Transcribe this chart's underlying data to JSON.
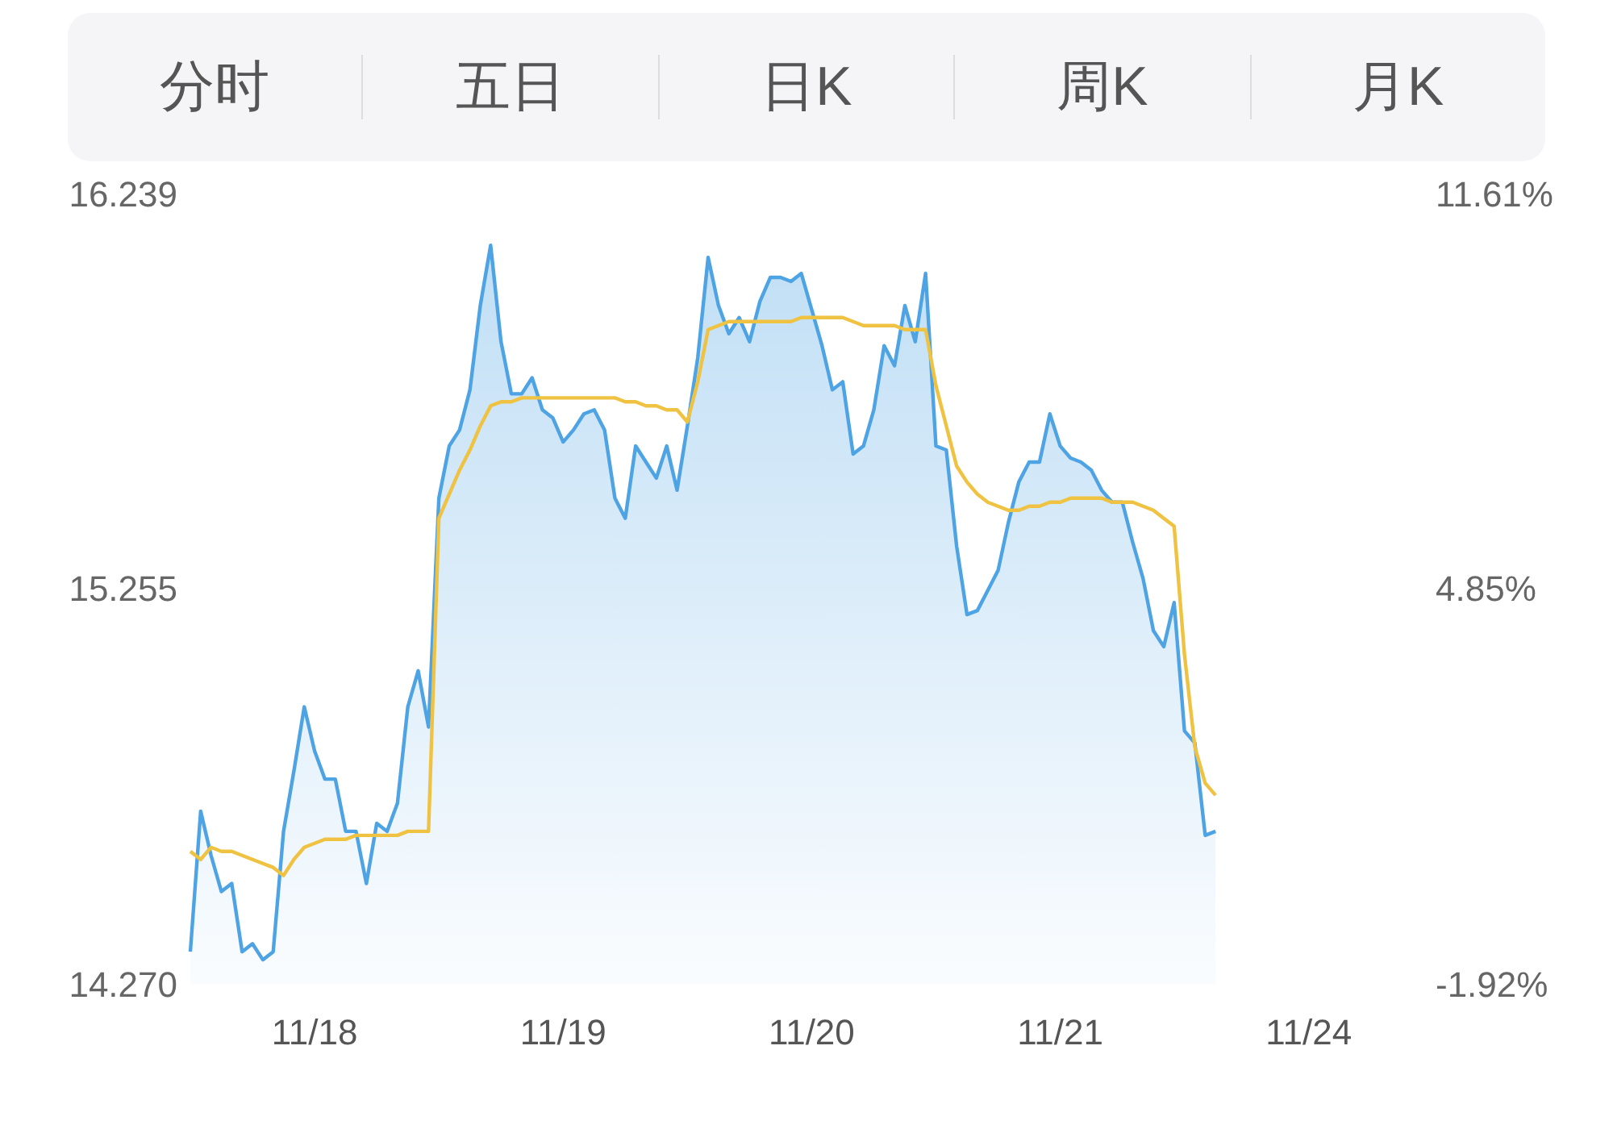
{
  "chart_data": {
    "type": "area",
    "annotations": [
      "分时",
      "五日",
      "日K",
      "周K",
      "月K"
    ],
    "categories": [
      null,
      null,
      null,
      null,
      null,
      null,
      null,
      null,
      null,
      null,
      null,
      null,
      "11/18",
      null,
      null,
      null,
      null,
      null,
      null,
      null,
      null,
      null,
      null,
      null,
      null,
      null,
      null,
      null,
      null,
      null,
      null,
      null,
      null,
      null,
      null,
      null,
      "11/19",
      null,
      null,
      null,
      null,
      null,
      null,
      null,
      null,
      null,
      null,
      null,
      null,
      null,
      null,
      null,
      null,
      null,
      null,
      null,
      null,
      null,
      null,
      null,
      "11/20",
      null,
      null,
      null,
      null,
      null,
      null,
      null,
      null,
      null,
      null,
      null,
      null,
      null,
      null,
      null,
      null,
      null,
      null,
      null,
      null,
      null,
      null,
      null,
      "11/21",
      null,
      null,
      null,
      null,
      null,
      null,
      null,
      null,
      null,
      null,
      null,
      null,
      null,
      null,
      null,
      null,
      null,
      null,
      null,
      null,
      null,
      null,
      null,
      "11/24",
      null,
      null,
      null,
      null,
      null,
      null,
      null,
      null,
      null,
      null,
      null
    ],
    "ylim": [
      14.27,
      16.239
    ],
    "yticks": [
      {
        "value": 14.27,
        "label": "14.270"
      },
      {
        "value": 15.255,
        "label": "15.255"
      },
      {
        "value": 16.239,
        "label": "16.239"
      }
    ],
    "y2lim": [
      -1.92,
      11.61
    ],
    "y2ticks": [
      {
        "value": -1.92,
        "label": "-1.92%"
      },
      {
        "value": 4.85,
        "label": "4.85%"
      },
      {
        "value": 11.61,
        "label": "11.61%"
      }
    ],
    "grid": false,
    "legend": false,
    "marker": "none",
    "line_style": "solid",
    "series": [
      {
        "color": "#4da3e3",
        "values": [
          14.35,
          14.7,
          14.59,
          14.5,
          14.52,
          14.35,
          14.37,
          14.33,
          14.35,
          14.65,
          14.8,
          14.96,
          14.85,
          14.78,
          14.78,
          14.65,
          14.65,
          14.52,
          14.67,
          14.65,
          14.72,
          14.96,
          15.05,
          14.91,
          15.48,
          15.61,
          15.65,
          15.75,
          15.96,
          16.11,
          15.87,
          15.74,
          15.74,
          15.78,
          15.7,
          15.68,
          15.62,
          15.65,
          15.69,
          15.7,
          15.65,
          15.48,
          15.43,
          15.61,
          15.57,
          15.53,
          15.61,
          15.5,
          15.66,
          15.83,
          16.08,
          15.96,
          15.89,
          15.93,
          15.87,
          15.97,
          16.03,
          16.03,
          16.02,
          16.04,
          15.95,
          15.86,
          15.75,
          15.77,
          15.59,
          15.61,
          15.7,
          15.86,
          15.81,
          15.96,
          15.87,
          16.04,
          15.61,
          15.6,
          15.36,
          15.19,
          15.2,
          15.25,
          15.3,
          15.42,
          15.52,
          15.57,
          15.57,
          15.69,
          15.61,
          15.58,
          15.57,
          15.55,
          15.5,
          15.47,
          15.47,
          15.37,
          15.28,
          15.15,
          15.11,
          15.22,
          14.9,
          14.87,
          14.64,
          14.65,
          null,
          null,
          null,
          null,
          null,
          null,
          null,
          null,
          null,
          null,
          null,
          null,
          null,
          null,
          null,
          null,
          null,
          null,
          null,
          null
        ]
      },
      {
        "type": "line",
        "color": "#efc241",
        "values": [
          14.6,
          14.58,
          14.61,
          14.6,
          14.6,
          14.59,
          14.58,
          14.57,
          14.56,
          14.54,
          14.58,
          14.61,
          14.62,
          14.63,
          14.63,
          14.63,
          14.64,
          14.64,
          14.64,
          14.64,
          14.64,
          14.65,
          14.65,
          14.65,
          15.43,
          15.49,
          15.55,
          15.6,
          15.66,
          15.71,
          15.72,
          15.72,
          15.73,
          15.73,
          15.73,
          15.73,
          15.73,
          15.73,
          15.73,
          15.73,
          15.73,
          15.73,
          15.72,
          15.72,
          15.71,
          15.71,
          15.7,
          15.7,
          15.67,
          15.77,
          15.9,
          15.91,
          15.92,
          15.92,
          15.92,
          15.92,
          15.92,
          15.92,
          15.92,
          15.93,
          15.93,
          15.93,
          15.93,
          15.93,
          15.92,
          15.91,
          15.91,
          15.91,
          15.91,
          15.9,
          15.9,
          15.9,
          15.76,
          15.66,
          15.56,
          15.52,
          15.49,
          15.47,
          15.46,
          15.45,
          15.45,
          15.46,
          15.46,
          15.47,
          15.47,
          15.48,
          15.48,
          15.48,
          15.48,
          15.47,
          15.47,
          15.47,
          15.46,
          15.45,
          15.43,
          15.41,
          15.09,
          14.86,
          14.77,
          14.74,
          null,
          null,
          null,
          null,
          null,
          null,
          null,
          null,
          null,
          null,
          null,
          null,
          null,
          null,
          null,
          null,
          null,
          null,
          null,
          null
        ]
      }
    ]
  }
}
